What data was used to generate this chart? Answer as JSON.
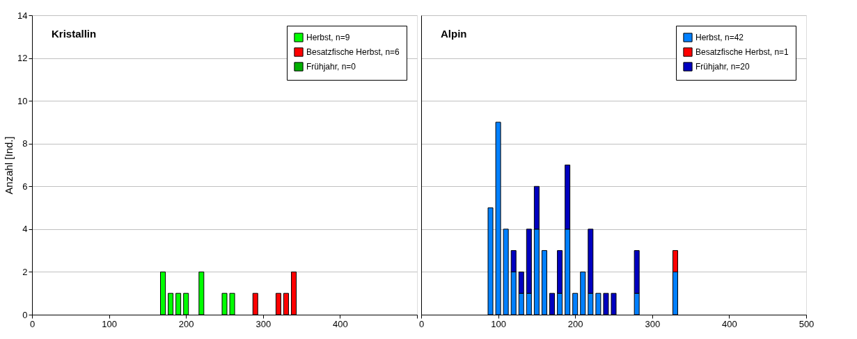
{
  "chart_data": [
    {
      "type": "bar",
      "title": "Kristallin",
      "ylabel": "Anzahl [Ind.]",
      "stacked": true,
      "legend": "top right",
      "grid": "y",
      "x": [
        170,
        180,
        190,
        200,
        220,
        250,
        260,
        290,
        320,
        330,
        340
      ],
      "series": [
        {
          "name": "Herbst, n=9",
          "color": "#00ff00",
          "values": [
            2,
            1,
            1,
            1,
            2,
            1,
            1,
            0,
            0,
            0,
            0
          ]
        },
        {
          "name": "Besatzfische Herbst, n=6",
          "color": "#ff0000",
          "values": [
            0,
            0,
            0,
            0,
            0,
            0,
            0,
            1,
            1,
            1,
            2
          ]
        },
        {
          "name": "Frühjahr, n=0",
          "color": "#00b000",
          "values": [
            0,
            0,
            0,
            0,
            0,
            0,
            0,
            0,
            0,
            0,
            0
          ]
        }
      ],
      "xlim": [
        0,
        500
      ],
      "xticks": [
        0,
        100,
        200,
        300,
        400,
        {
          "value": 500,
          "label": null
        }
      ],
      "ylim": [
        0,
        14
      ],
      "yticks": [
        0,
        2,
        4,
        6,
        8,
        10,
        12,
        14
      ]
    },
    {
      "type": "bar",
      "title": "Alpin",
      "stacked": true,
      "legend": "top right",
      "grid": "y",
      "tick_labels": "x",
      "x": [
        90,
        100,
        110,
        120,
        130,
        140,
        150,
        160,
        170,
        180,
        190,
        200,
        210,
        220,
        230,
        240,
        250,
        280,
        330
      ],
      "series": [
        {
          "name": "Herbst, n=42",
          "color": "#0080ff",
          "values": [
            5,
            9,
            4,
            2,
            1,
            1,
            4,
            3,
            0,
            1,
            4,
            1,
            2,
            1,
            1,
            0,
            0,
            1,
            2
          ]
        },
        {
          "name": "Besatzfische Herbst, n=1",
          "color": "#ff0000",
          "values": [
            0,
            0,
            0,
            0,
            0,
            0,
            0,
            0,
            0,
            0,
            0,
            0,
            0,
            0,
            0,
            0,
            0,
            0,
            1
          ]
        },
        {
          "name": "Frühjahr, n=20",
          "color": "#0000c0",
          "values": [
            0,
            0,
            0,
            1,
            1,
            3,
            2,
            0,
            1,
            2,
            3,
            0,
            0,
            3,
            0,
            1,
            1,
            2,
            0
          ]
        }
      ],
      "xlim": [
        0,
        500
      ],
      "xticks": [
        0,
        100,
        200,
        300,
        400,
        500
      ],
      "ylim": [
        0,
        14
      ],
      "yticks": [
        0,
        2,
        4,
        6,
        8,
        10,
        12,
        14
      ]
    }
  ]
}
